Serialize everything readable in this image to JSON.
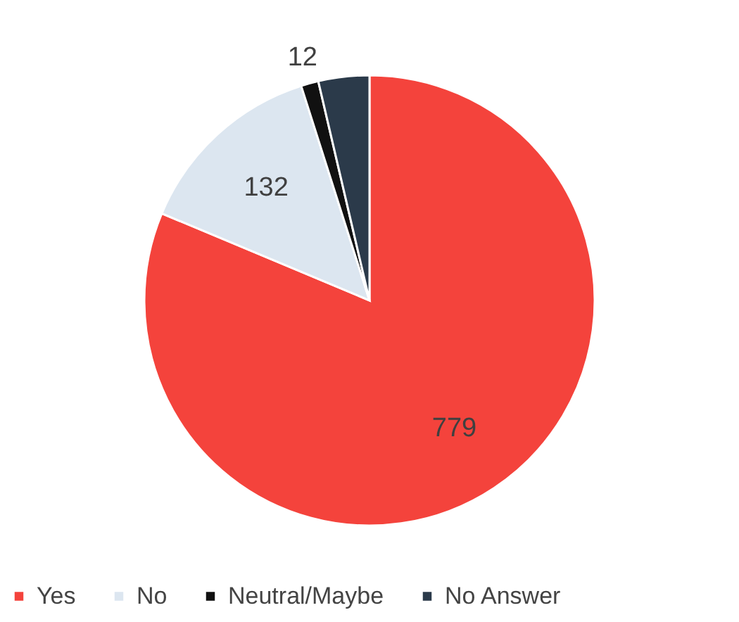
{
  "chart_data": {
    "type": "pie",
    "categories": [
      "Yes",
      "No",
      "Neutral/Maybe",
      "No Answer"
    ],
    "values": [
      779,
      132,
      12,
      35
    ],
    "value_labels": [
      "779",
      "132",
      "12",
      null
    ],
    "colors": [
      "#f4433c",
      "#dce6f0",
      "#111111",
      "#2b3a4a"
    ],
    "legend": "bottom"
  }
}
